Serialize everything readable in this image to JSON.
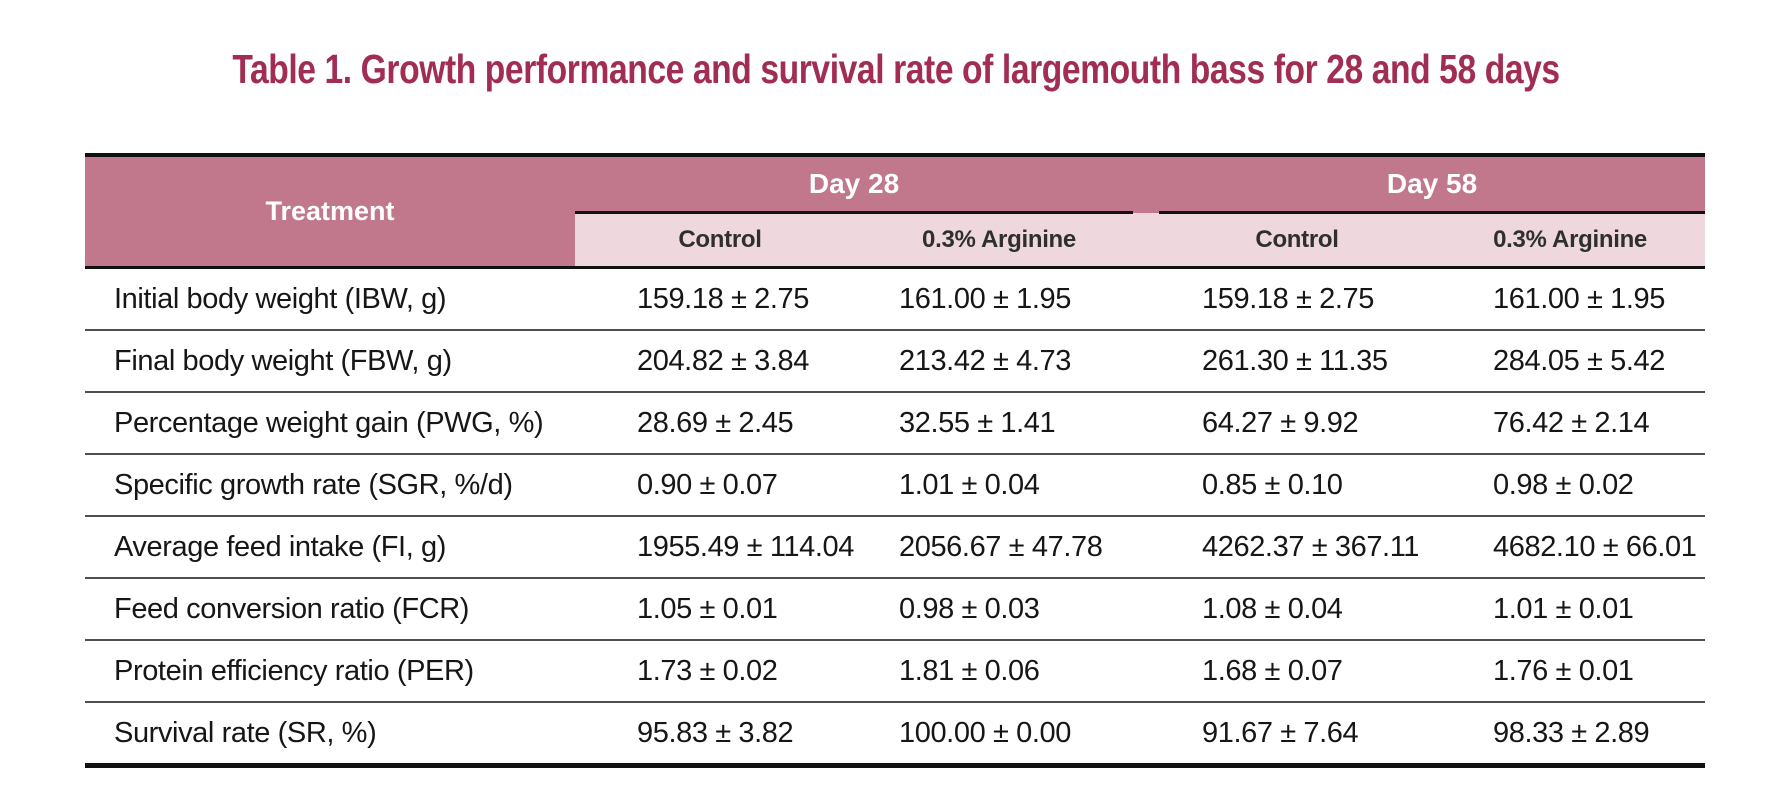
{
  "page": {
    "background": "#ffffff"
  },
  "title": {
    "text": "Table 1. Growth performance and survival rate of largemouth bass for 28 and 58 days",
    "color": "#a12d52"
  },
  "table": {
    "colors": {
      "group_header_bg": "#c1788c",
      "group_header_text": "#ffffff",
      "subheader_bg": "#eed8dd",
      "subheader_text": "#2f2f2f",
      "body_text": "#161616",
      "heavy_border": "#111111",
      "row_divider": "#4f4f4f"
    },
    "treatment_header": "Treatment",
    "groups": [
      {
        "label": "Day 28"
      },
      {
        "label": "Day 58"
      }
    ],
    "subheaders": [
      "Control",
      "0.3% Arginine",
      "Control",
      "0.3% Arginine"
    ],
    "rows": [
      {
        "label": "Initial body weight (IBW, g)",
        "values": [
          "159.18 ± 2.75",
          "161.00 ± 1.95",
          "159.18 ± 2.75",
          "161.00 ± 1.95"
        ]
      },
      {
        "label": "Final body weight (FBW, g)",
        "values": [
          "204.82 ± 3.84",
          "213.42 ± 4.73",
          "261.30 ± 11.35",
          "284.05 ± 5.42"
        ]
      },
      {
        "label": "Percentage weight gain (PWG, %)",
        "values": [
          "28.69 ± 2.45",
          "32.55 ± 1.41",
          "64.27 ± 9.92",
          "76.42 ± 2.14"
        ]
      },
      {
        "label": "Specific growth rate (SGR, %/d)",
        "values": [
          "0.90 ± 0.07",
          "1.01 ± 0.04",
          "0.85 ± 0.10",
          "0.98 ± 0.02"
        ]
      },
      {
        "label": "Average feed intake (FI, g)",
        "values": [
          "1955.49 ± 114.04",
          "2056.67 ± 47.78",
          "4262.37 ± 367.11",
          "4682.10 ± 66.01"
        ]
      },
      {
        "label": "Feed conversion ratio (FCR)",
        "values": [
          "1.05 ± 0.01",
          "0.98 ± 0.03",
          "1.08 ± 0.04",
          "1.01 ± 0.01"
        ]
      },
      {
        "label": "Protein efficiency ratio (PER)",
        "values": [
          "1.73 ± 0.02",
          "1.81 ± 0.06",
          "1.68 ± 0.07",
          "1.76 ± 0.01"
        ]
      },
      {
        "label": "Survival rate (SR, %)",
        "values": [
          "95.83 ± 3.82",
          "100.00 ± 0.00",
          "91.67 ± 7.64",
          "98.33 ± 2.89"
        ]
      }
    ]
  },
  "chart_data": {
    "type": "table",
    "title": "Table 1. Growth performance and survival rate of largemouth bass for 28 and 58 days",
    "column_groups": [
      "Day 28",
      "Day 58"
    ],
    "columns": [
      "Treatment",
      "Day 28 Control",
      "Day 28 0.3% Arginine",
      "Day 58 Control",
      "Day 58 0.3% Arginine"
    ],
    "rows": [
      [
        "Initial body weight (IBW, g)",
        "159.18 ± 2.75",
        "161.00 ± 1.95",
        "159.18 ± 2.75",
        "161.00 ± 1.95"
      ],
      [
        "Final body weight (FBW, g)",
        "204.82 ± 3.84",
        "213.42 ± 4.73",
        "261.30 ± 11.35",
        "284.05 ± 5.42"
      ],
      [
        "Percentage weight gain (PWG, %)",
        "28.69 ± 2.45",
        "32.55 ± 1.41",
        "64.27 ± 9.92",
        "76.42 ± 2.14"
      ],
      [
        "Specific growth rate (SGR, %/d)",
        "0.90 ± 0.07",
        "1.01 ± 0.04",
        "0.85 ± 0.10",
        "0.98 ± 0.02"
      ],
      [
        "Average feed intake (FI, g)",
        "1955.49 ± 114.04",
        "2056.67 ± 47.78",
        "4262.37 ± 367.11",
        "4682.10 ± 66.01"
      ],
      [
        "Feed conversion ratio (FCR)",
        "1.05 ± 0.01",
        "0.98 ± 0.03",
        "1.08 ± 0.04",
        "1.01 ± 0.01"
      ],
      [
        "Protein efficiency ratio (PER)",
        "1.73 ± 0.02",
        "1.81 ± 0.06",
        "1.68 ± 0.07",
        "1.76 ± 0.01"
      ],
      [
        "Survival rate (SR, %)",
        "95.83 ± 3.82",
        "100.00 ± 0.00",
        "91.67 ± 7.64",
        "98.33 ± 2.89"
      ]
    ]
  }
}
